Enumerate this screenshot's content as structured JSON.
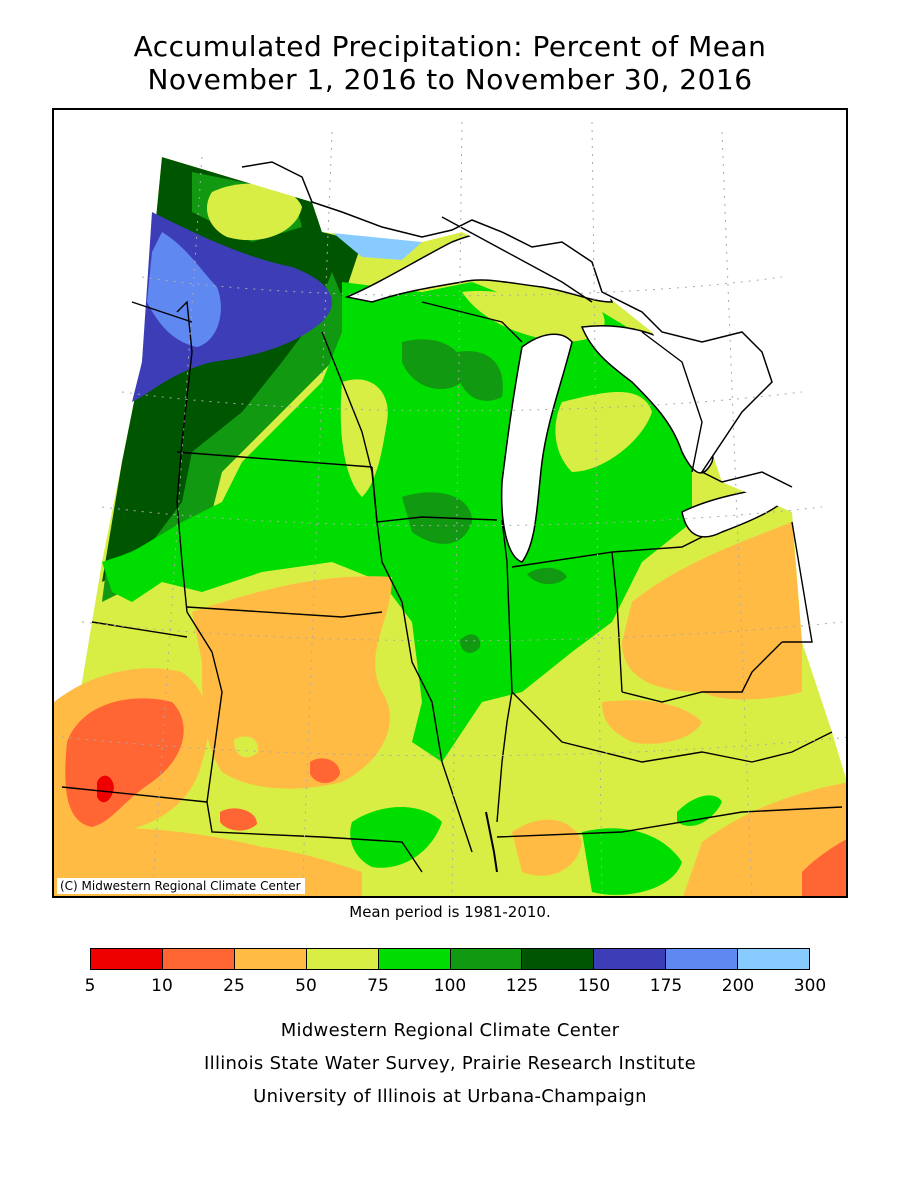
{
  "title": {
    "line1": "Accumulated Precipitation: Percent of Mean",
    "line2": "November 1, 2016 to November 30, 2016"
  },
  "map": {
    "copyright": "(C) Midwestern Regional Climate Center",
    "mean_period": "Mean period is 1981-2010."
  },
  "legend": {
    "colors": [
      "#ee0000",
      "#ff6633",
      "#ffbb44",
      "#d9ee44",
      "#00dd00",
      "#119911",
      "#005500",
      "#3d3db8",
      "#5f88f0",
      "#88ccff"
    ],
    "ticks": [
      "5",
      "10",
      "25",
      "50",
      "75",
      "100",
      "125",
      "150",
      "175",
      "200",
      "300"
    ]
  },
  "credits": {
    "line1": "Midwestern Regional Climate Center",
    "line2": "Illinois State Water Survey, Prairie Research Institute",
    "line3": "University of Illinois at Urbana-Champaign"
  }
}
